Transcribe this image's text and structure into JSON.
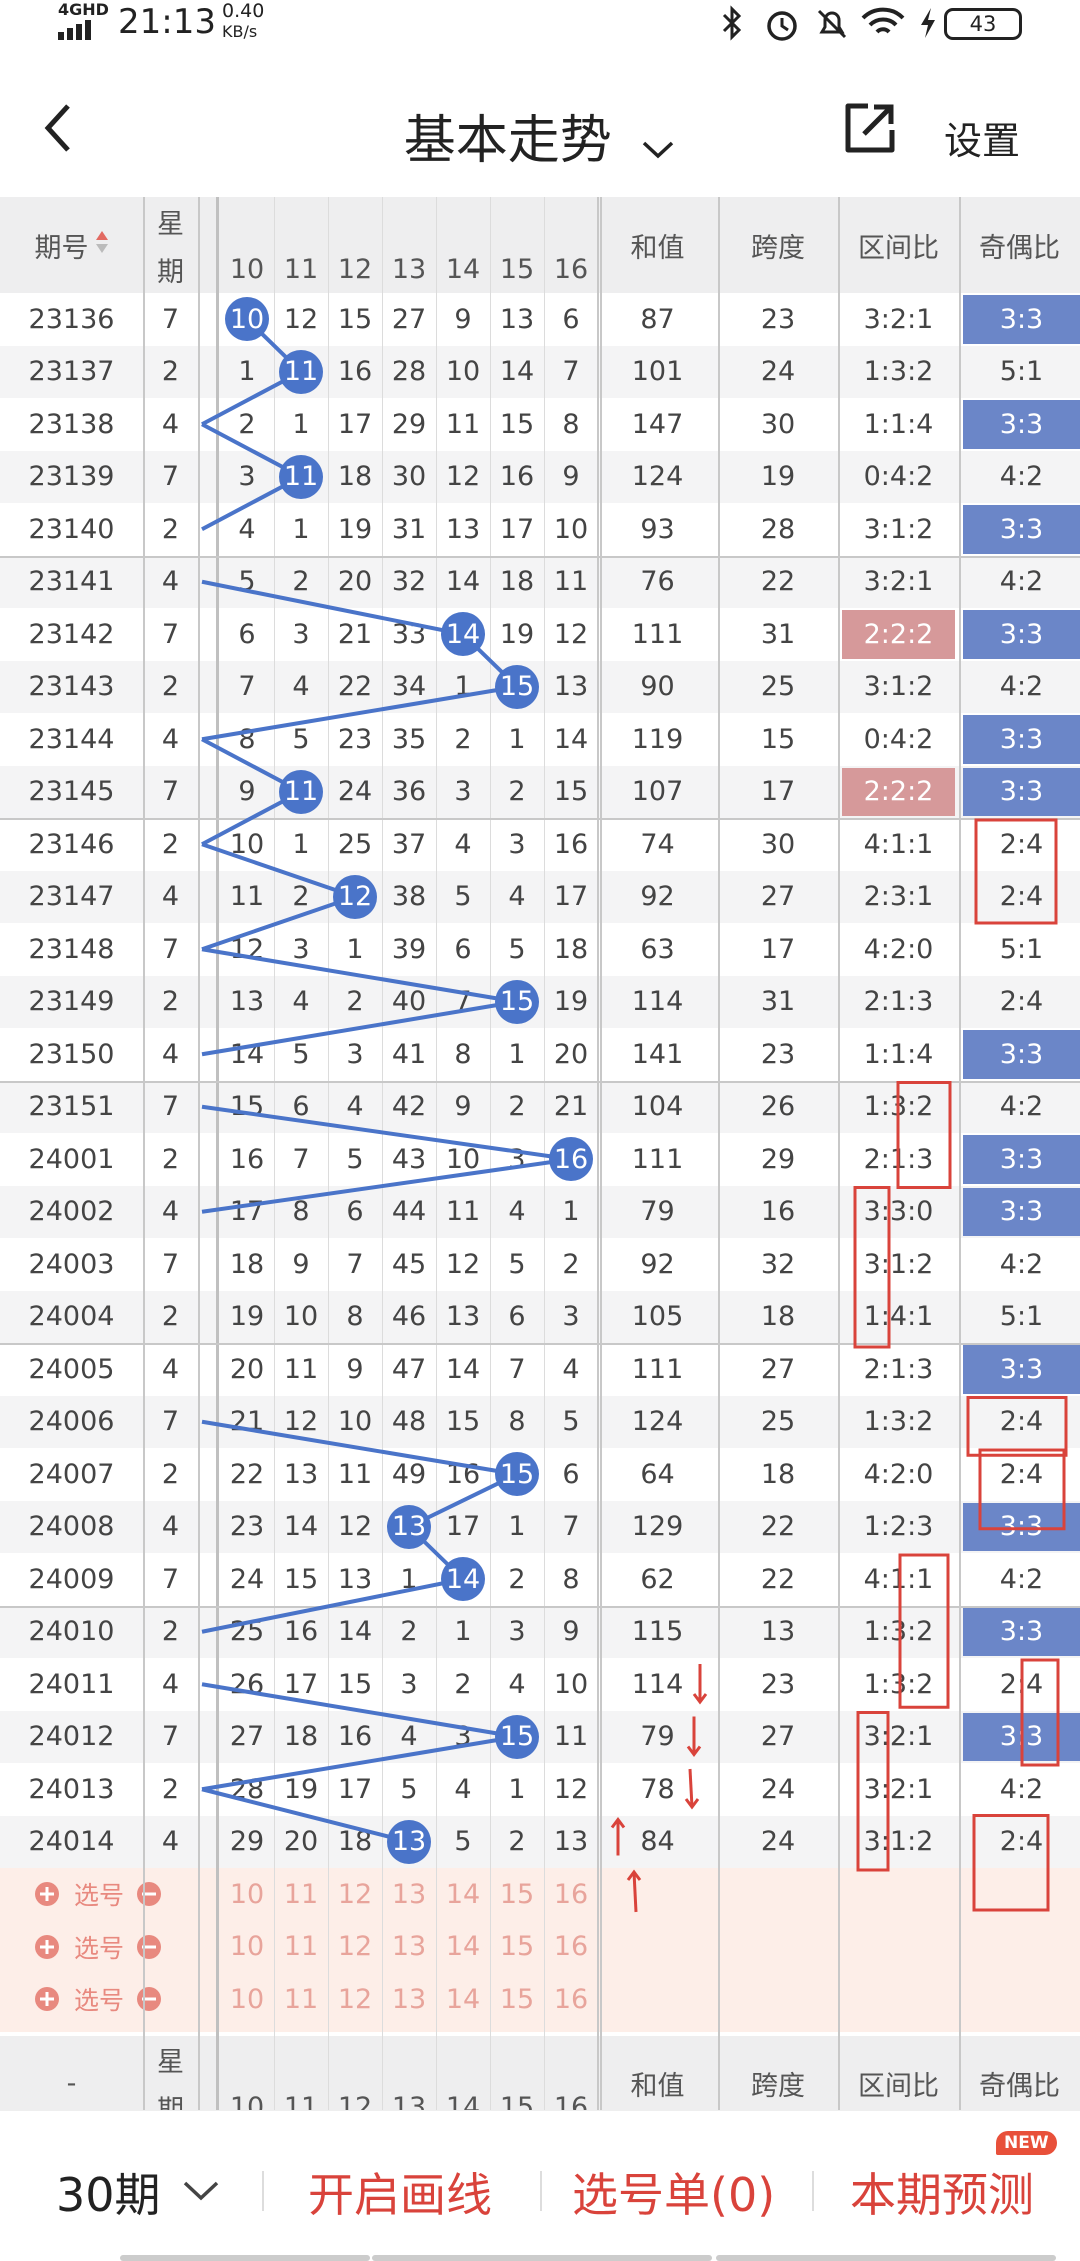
{
  "status_bar": {
    "network": "4GHD",
    "time": "21:13",
    "speed_value": "0.40",
    "speed_unit": "KB/s",
    "battery": "43"
  },
  "header": {
    "title": "基本走势",
    "settings_label": "设置"
  },
  "columns": {
    "period": "期号",
    "week_top": "星",
    "week_bottom": "期",
    "numbers": [
      "10",
      "11",
      "12",
      "13",
      "14",
      "15",
      "16"
    ],
    "sum": "和值",
    "span": "跨度",
    "range_ratio": "区间比",
    "odd_even_ratio": "奇偶比"
  },
  "rows": [
    {
      "period": "23136",
      "week": "7",
      "nums": [
        "10",
        "12",
        "15",
        "27",
        "9",
        "13",
        "6"
      ],
      "sum": "87",
      "span": "23",
      "range": "3:2:1",
      "oe": "3:3",
      "hit": 0
    },
    {
      "period": "23137",
      "week": "2",
      "nums": [
        "1",
        "11",
        "16",
        "28",
        "10",
        "14",
        "7"
      ],
      "sum": "101",
      "span": "24",
      "range": "1:3:2",
      "oe": "5:1",
      "hit": 1
    },
    {
      "period": "23138",
      "week": "4",
      "nums": [
        "2",
        "1",
        "17",
        "29",
        "11",
        "15",
        "8"
      ],
      "sum": "147",
      "span": "30",
      "range": "1:1:4",
      "oe": "3:3",
      "hit": -1
    },
    {
      "period": "23139",
      "week": "7",
      "nums": [
        "3",
        "11",
        "18",
        "30",
        "12",
        "16",
        "9"
      ],
      "sum": "124",
      "span": "19",
      "range": "0:4:2",
      "oe": "4:2",
      "hit": 1
    },
    {
      "period": "23140",
      "week": "2",
      "nums": [
        "4",
        "1",
        "19",
        "31",
        "13",
        "17",
        "10"
      ],
      "sum": "93",
      "span": "28",
      "range": "3:1:2",
      "oe": "3:3",
      "hit": -1
    },
    {
      "period": "23141",
      "week": "4",
      "nums": [
        "5",
        "2",
        "20",
        "32",
        "14",
        "18",
        "11"
      ],
      "sum": "76",
      "span": "22",
      "range": "3:2:1",
      "oe": "4:2",
      "hit": -1
    },
    {
      "period": "23142",
      "week": "7",
      "nums": [
        "6",
        "3",
        "21",
        "33",
        "14",
        "19",
        "12"
      ],
      "sum": "111",
      "span": "31",
      "range": "2:2:2",
      "oe": "3:3",
      "hit": 4
    },
    {
      "period": "23143",
      "week": "2",
      "nums": [
        "7",
        "4",
        "22",
        "34",
        "1",
        "15",
        "13"
      ],
      "sum": "90",
      "span": "25",
      "range": "3:1:2",
      "oe": "4:2",
      "hit": 5
    },
    {
      "period": "23144",
      "week": "4",
      "nums": [
        "8",
        "5",
        "23",
        "35",
        "2",
        "1",
        "14"
      ],
      "sum": "119",
      "span": "15",
      "range": "0:4:2",
      "oe": "3:3",
      "hit": -1
    },
    {
      "period": "23145",
      "week": "7",
      "nums": [
        "9",
        "11",
        "24",
        "36",
        "3",
        "2",
        "15"
      ],
      "sum": "107",
      "span": "17",
      "range": "2:2:2",
      "oe": "3:3",
      "hit": 1
    },
    {
      "period": "23146",
      "week": "2",
      "nums": [
        "10",
        "1",
        "25",
        "37",
        "4",
        "3",
        "16"
      ],
      "sum": "74",
      "span": "30",
      "range": "4:1:1",
      "oe": "2:4",
      "hit": -1
    },
    {
      "period": "23147",
      "week": "4",
      "nums": [
        "11",
        "2",
        "12",
        "38",
        "5",
        "4",
        "17"
      ],
      "sum": "92",
      "span": "27",
      "range": "2:3:1",
      "oe": "2:4",
      "hit": 2
    },
    {
      "period": "23148",
      "week": "7",
      "nums": [
        "12",
        "3",
        "1",
        "39",
        "6",
        "5",
        "18"
      ],
      "sum": "63",
      "span": "17",
      "range": "4:2:0",
      "oe": "5:1",
      "hit": -1
    },
    {
      "period": "23149",
      "week": "2",
      "nums": [
        "13",
        "4",
        "2",
        "40",
        "7",
        "15",
        "19"
      ],
      "sum": "114",
      "span": "31",
      "range": "2:1:3",
      "oe": "2:4",
      "hit": 5
    },
    {
      "period": "23150",
      "week": "4",
      "nums": [
        "14",
        "5",
        "3",
        "41",
        "8",
        "1",
        "20"
      ],
      "sum": "141",
      "span": "23",
      "range": "1:1:4",
      "oe": "3:3",
      "hit": -1
    },
    {
      "period": "23151",
      "week": "7",
      "nums": [
        "15",
        "6",
        "4",
        "42",
        "9",
        "2",
        "21"
      ],
      "sum": "104",
      "span": "26",
      "range": "1:3:2",
      "oe": "4:2",
      "hit": -1
    },
    {
      "period": "24001",
      "week": "2",
      "nums": [
        "16",
        "7",
        "5",
        "43",
        "10",
        "3",
        "16"
      ],
      "sum": "111",
      "span": "29",
      "range": "2:1:3",
      "oe": "3:3",
      "hit": 6
    },
    {
      "period": "24002",
      "week": "4",
      "nums": [
        "17",
        "8",
        "6",
        "44",
        "11",
        "4",
        "1"
      ],
      "sum": "79",
      "span": "16",
      "range": "3:3:0",
      "oe": "3:3",
      "hit": -1
    },
    {
      "period": "24003",
      "week": "7",
      "nums": [
        "18",
        "9",
        "7",
        "45",
        "12",
        "5",
        "2"
      ],
      "sum": "92",
      "span": "32",
      "range": "3:1:2",
      "oe": "4:2",
      "hit": -1
    },
    {
      "period": "24004",
      "week": "2",
      "nums": [
        "19",
        "10",
        "8",
        "46",
        "13",
        "6",
        "3"
      ],
      "sum": "105",
      "span": "18",
      "range": "1:4:1",
      "oe": "5:1",
      "hit": -1
    },
    {
      "period": "24005",
      "week": "4",
      "nums": [
        "20",
        "11",
        "9",
        "47",
        "14",
        "7",
        "4"
      ],
      "sum": "111",
      "span": "27",
      "range": "2:1:3",
      "oe": "3:3",
      "hit": -1
    },
    {
      "period": "24006",
      "week": "7",
      "nums": [
        "21",
        "12",
        "10",
        "48",
        "15",
        "8",
        "5"
      ],
      "sum": "124",
      "span": "25",
      "range": "1:3:2",
      "oe": "2:4",
      "hit": -1
    },
    {
      "period": "24007",
      "week": "2",
      "nums": [
        "22",
        "13",
        "11",
        "49",
        "16",
        "15",
        "6"
      ],
      "sum": "64",
      "span": "18",
      "range": "4:2:0",
      "oe": "2:4",
      "hit": 5
    },
    {
      "period": "24008",
      "week": "4",
      "nums": [
        "23",
        "14",
        "12",
        "13",
        "17",
        "1",
        "7"
      ],
      "sum": "129",
      "span": "22",
      "range": "1:2:3",
      "oe": "3:3",
      "hit": 3
    },
    {
      "period": "24009",
      "week": "7",
      "nums": [
        "24",
        "15",
        "13",
        "1",
        "14",
        "2",
        "8"
      ],
      "sum": "62",
      "span": "22",
      "range": "4:1:1",
      "oe": "4:2",
      "hit": 4
    },
    {
      "period": "24010",
      "week": "2",
      "nums": [
        "25",
        "16",
        "14",
        "2",
        "1",
        "3",
        "9"
      ],
      "sum": "115",
      "span": "13",
      "range": "1:3:2",
      "oe": "3:3",
      "hit": -1
    },
    {
      "period": "24011",
      "week": "4",
      "nums": [
        "26",
        "17",
        "15",
        "3",
        "2",
        "4",
        "10"
      ],
      "sum": "114",
      "span": "23",
      "range": "1:3:2",
      "oe": "2:4",
      "hit": -1
    },
    {
      "period": "24012",
      "week": "7",
      "nums": [
        "27",
        "18",
        "16",
        "4",
        "3",
        "15",
        "11"
      ],
      "sum": "79",
      "span": "27",
      "range": "3:2:1",
      "oe": "3:3",
      "hit": 5
    },
    {
      "period": "24013",
      "week": "2",
      "nums": [
        "28",
        "19",
        "17",
        "5",
        "4",
        "1",
        "12"
      ],
      "sum": "78",
      "span": "24",
      "range": "3:2:1",
      "oe": "4:2",
      "hit": -1
    },
    {
      "period": "24014",
      "week": "4",
      "nums": [
        "29",
        "20",
        "18",
        "13",
        "5",
        "2",
        "13"
      ],
      "sum": "84",
      "span": "24",
      "range": "3:1:2",
      "oe": "2:4",
      "hit": 3
    }
  ],
  "select_rows": {
    "label": "选号",
    "numbers": [
      "10",
      "11",
      "12",
      "13",
      "14",
      "15",
      "16"
    ]
  },
  "footer_header": {
    "period": "-",
    "week_top": "星",
    "week_bottom": "期",
    "numbers": [
      "10",
      "11",
      "12",
      "13",
      "14",
      "15",
      "16"
    ],
    "sum": "和值",
    "span": "跨度",
    "range_ratio": "区间比",
    "odd_even_ratio": "奇偶比"
  },
  "bottom_bar": {
    "period_count": "30期",
    "draw_lines": "开启画线",
    "selection_list": "选号单(0)",
    "prediction": "本期预测",
    "new_badge": "NEW"
  },
  "colors": {
    "accent_red": "#d9433b",
    "ball_blue": "#4a74c9",
    "oe_highlight": "#6b86c8",
    "range_highlight": "#d6999a",
    "select_bg": "#fdeee8"
  }
}
